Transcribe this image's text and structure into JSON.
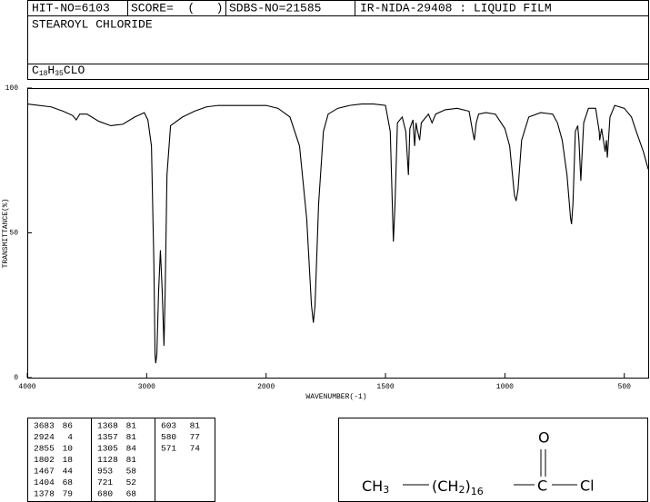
{
  "header": {
    "hit_no": "HIT-NO=6103",
    "score": "SCORE=  (   )",
    "sdbs_no": "SDBS-NO=21585",
    "method": "IR-NIDA-29408 : LIQUID FILM",
    "compound": "STEAROYL CHLORIDE",
    "formula": [
      "C",
      "18",
      "H",
      "35",
      "CLO"
    ]
  },
  "chart_data": {
    "type": "line",
    "xlabel": "WAVENUMBER(-1)",
    "ylabel": "TRANSMITTANCE(%)",
    "color": "#000000",
    "xlim": [
      4000,
      400
    ],
    "x_scale_break": 2000,
    "xticks": [
      4000,
      3000,
      2000,
      1500,
      1000,
      500
    ],
    "ylim": [
      0,
      100
    ],
    "yticks": [
      0,
      50,
      100
    ],
    "x": [
      4000,
      3800,
      3700,
      3620,
      3590,
      3560,
      3500,
      3400,
      3300,
      3200,
      3100,
      3020,
      2990,
      2960,
      2940,
      2930,
      2924,
      2915,
      2900,
      2885,
      2870,
      2855,
      2845,
      2830,
      2800,
      2700,
      2600,
      2500,
      2400,
      2300,
      2200,
      2100,
      2000,
      1950,
      1900,
      1860,
      1830,
      1810,
      1802,
      1795,
      1780,
      1760,
      1740,
      1700,
      1650,
      1600,
      1550,
      1500,
      1480,
      1467,
      1460,
      1450,
      1430,
      1415,
      1404,
      1398,
      1385,
      1378,
      1372,
      1368,
      1357,
      1350,
      1320,
      1305,
      1290,
      1250,
      1200,
      1150,
      1135,
      1128,
      1120,
      1110,
      1080,
      1040,
      1000,
      980,
      960,
      953,
      945,
      930,
      900,
      850,
      800,
      780,
      760,
      740,
      725,
      721,
      715,
      705,
      695,
      690,
      682,
      678,
      670,
      650,
      620,
      605,
      603,
      595,
      580,
      575,
      571,
      560,
      540,
      500,
      470,
      450,
      420,
      400
    ],
    "values": [
      94.5,
      93.5,
      92,
      90.5,
      89,
      91,
      91,
      88.5,
      87,
      87.5,
      90,
      91.5,
      89,
      80,
      40,
      8,
      5,
      8,
      30,
      44,
      30,
      11,
      30,
      70,
      87,
      90,
      92,
      93.5,
      94,
      94,
      94,
      94,
      94,
      93,
      90,
      80,
      55,
      25,
      19,
      25,
      60,
      85,
      91,
      93,
      94,
      94.5,
      94.5,
      94,
      85,
      47,
      60,
      88,
      90,
      85,
      70,
      86,
      89,
      80,
      88,
      86,
      82,
      88,
      91,
      88,
      91,
      92.5,
      93,
      92,
      85,
      82,
      88,
      91,
      91.5,
      91,
      86,
      80,
      63,
      61,
      65,
      82,
      90,
      91.5,
      91,
      88,
      82,
      70,
      55,
      53,
      60,
      85,
      87,
      82,
      68,
      75,
      88,
      93,
      93,
      85,
      82,
      86,
      78,
      82,
      76,
      90,
      94,
      93,
      90,
      85,
      78,
      72
    ]
  },
  "peak_table": {
    "rows": [
      [
        3683,
        86
      ],
      [
        2924,
        4
      ],
      [
        2855,
        10
      ],
      [
        1802,
        18
      ],
      [
        1467,
        44
      ],
      [
        1404,
        68
      ],
      [
        1378,
        79
      ],
      [
        1368,
        81
      ],
      [
        1357,
        81
      ],
      [
        1305,
        84
      ],
      [
        1128,
        81
      ],
      [
        953,
        58
      ],
      [
        721,
        52
      ],
      [
        680,
        68
      ],
      [
        603,
        81
      ],
      [
        580,
        77
      ],
      [
        571,
        74
      ]
    ]
  },
  "structure": {
    "ch3": [
      "CH",
      "3"
    ],
    "ch2": [
      "(",
      "CH",
      "2",
      ")",
      "16"
    ],
    "carbon": "C",
    "oxygen": "O",
    "chlorine": "Cl"
  }
}
